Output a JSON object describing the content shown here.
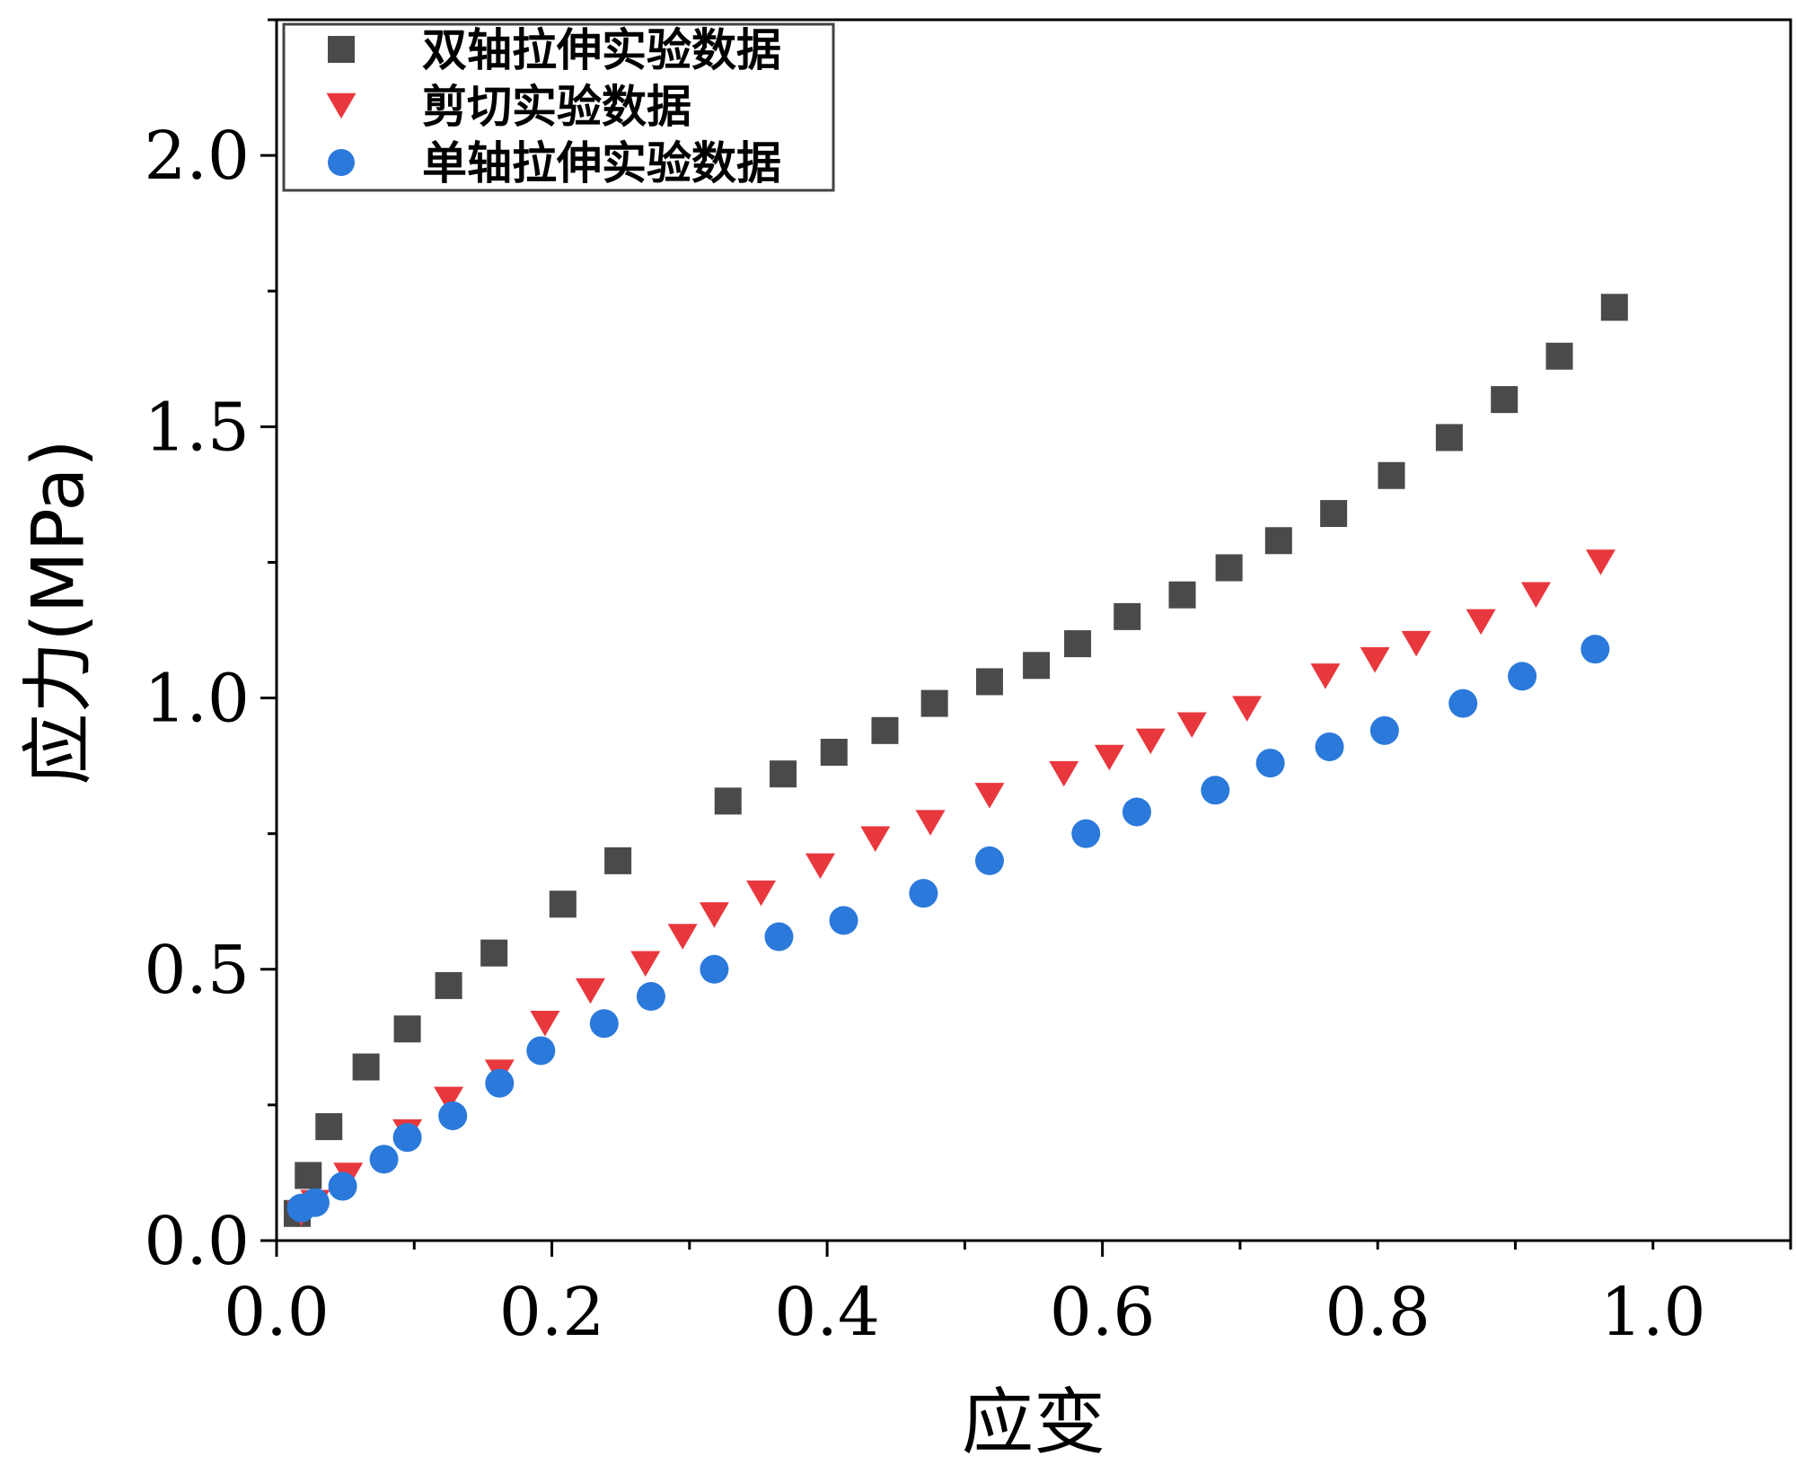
{
  "chart_data": {
    "type": "scatter",
    "title": "",
    "xlabel": "应变",
    "ylabel": "应力(MPa)",
    "xlim": [
      0.0,
      1.1
    ],
    "ylim": [
      0.0,
      2.25
    ],
    "grid": false,
    "legend_position": "top-left",
    "x_ticks": [
      {
        "value": 0.0,
        "label": "0.0"
      },
      {
        "value": 0.2,
        "label": "0.2"
      },
      {
        "value": 0.4,
        "label": "0.4"
      },
      {
        "value": 0.6,
        "label": "0.6"
      },
      {
        "value": 0.8,
        "label": "0.8"
      },
      {
        "value": 1.0,
        "label": "1.0"
      }
    ],
    "y_ticks": [
      {
        "value": 0.0,
        "label": "0.0"
      },
      {
        "value": 0.5,
        "label": "0.5"
      },
      {
        "value": 1.0,
        "label": "1.0"
      },
      {
        "value": 1.5,
        "label": "1.5"
      },
      {
        "value": 2.0,
        "label": "2.0"
      }
    ],
    "series": [
      {
        "name": "双轴拉伸实验数据",
        "marker": "square",
        "color": "#4a4a4a",
        "points": [
          [
            0.015,
            0.05
          ],
          [
            0.023,
            0.12
          ],
          [
            0.038,
            0.21
          ],
          [
            0.065,
            0.32
          ],
          [
            0.095,
            0.39
          ],
          [
            0.125,
            0.47
          ],
          [
            0.158,
            0.53
          ],
          [
            0.208,
            0.62
          ],
          [
            0.248,
            0.7
          ],
          [
            0.328,
            0.81
          ],
          [
            0.368,
            0.86
          ],
          [
            0.405,
            0.9
          ],
          [
            0.442,
            0.94
          ],
          [
            0.478,
            0.99
          ],
          [
            0.518,
            1.03
          ],
          [
            0.552,
            1.06
          ],
          [
            0.582,
            1.1
          ],
          [
            0.618,
            1.15
          ],
          [
            0.658,
            1.19
          ],
          [
            0.692,
            1.24
          ],
          [
            0.728,
            1.29
          ],
          [
            0.768,
            1.34
          ],
          [
            0.81,
            1.41
          ],
          [
            0.852,
            1.48
          ],
          [
            0.892,
            1.55
          ],
          [
            0.932,
            1.63
          ],
          [
            0.972,
            1.72
          ]
        ]
      },
      {
        "name": "剪切实验数据",
        "marker": "triangle-down",
        "color": "#e8383d",
        "points": [
          [
            0.018,
            0.05
          ],
          [
            0.028,
            0.07
          ],
          [
            0.052,
            0.12
          ],
          [
            0.095,
            0.2
          ],
          [
            0.125,
            0.26
          ],
          [
            0.162,
            0.31
          ],
          [
            0.195,
            0.4
          ],
          [
            0.228,
            0.46
          ],
          [
            0.268,
            0.51
          ],
          [
            0.295,
            0.56
          ],
          [
            0.318,
            0.6
          ],
          [
            0.352,
            0.64
          ],
          [
            0.395,
            0.69
          ],
          [
            0.435,
            0.74
          ],
          [
            0.475,
            0.77
          ],
          [
            0.518,
            0.82
          ],
          [
            0.572,
            0.86
          ],
          [
            0.605,
            0.89
          ],
          [
            0.635,
            0.92
          ],
          [
            0.665,
            0.95
          ],
          [
            0.705,
            0.98
          ],
          [
            0.762,
            1.04
          ],
          [
            0.798,
            1.07
          ],
          [
            0.828,
            1.1
          ],
          [
            0.875,
            1.14
          ],
          [
            0.915,
            1.19
          ],
          [
            0.962,
            1.25
          ]
        ]
      },
      {
        "name": "单轴拉伸实验数据",
        "marker": "circle",
        "color": "#2b79db",
        "points": [
          [
            0.018,
            0.06
          ],
          [
            0.028,
            0.07
          ],
          [
            0.048,
            0.1
          ],
          [
            0.078,
            0.15
          ],
          [
            0.095,
            0.19
          ],
          [
            0.128,
            0.23
          ],
          [
            0.162,
            0.29
          ],
          [
            0.192,
            0.35
          ],
          [
            0.238,
            0.4
          ],
          [
            0.272,
            0.45
          ],
          [
            0.318,
            0.5
          ],
          [
            0.365,
            0.56
          ],
          [
            0.412,
            0.59
          ],
          [
            0.47,
            0.64
          ],
          [
            0.518,
            0.7
          ],
          [
            0.588,
            0.75
          ],
          [
            0.625,
            0.79
          ],
          [
            0.682,
            0.83
          ],
          [
            0.722,
            0.88
          ],
          [
            0.765,
            0.91
          ],
          [
            0.805,
            0.94
          ],
          [
            0.862,
            0.99
          ],
          [
            0.905,
            1.04
          ],
          [
            0.958,
            1.09
          ]
        ]
      }
    ]
  }
}
